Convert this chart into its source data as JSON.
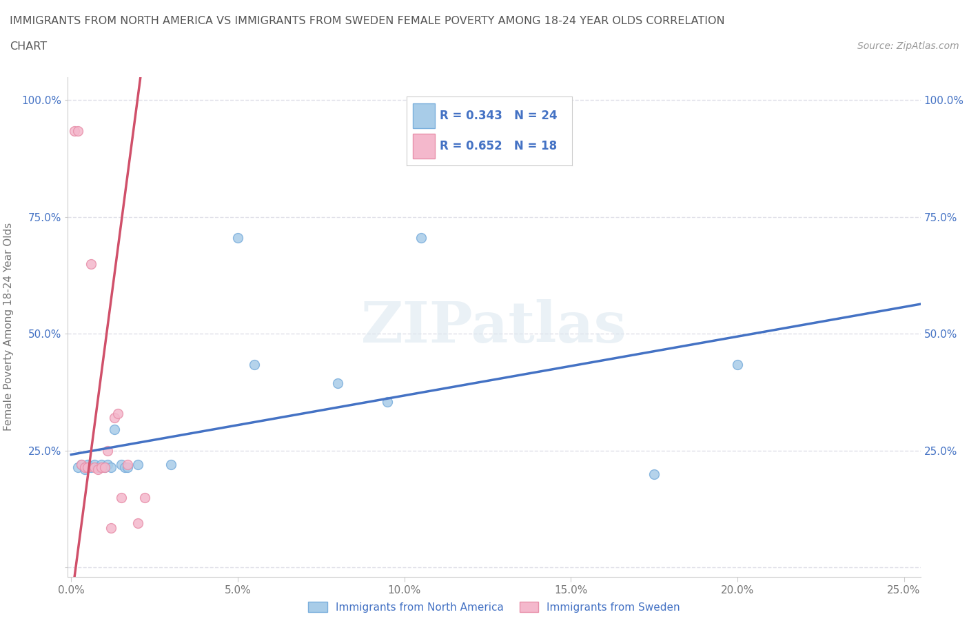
{
  "title_line1": "IMMIGRANTS FROM NORTH AMERICA VS IMMIGRANTS FROM SWEDEN FEMALE POVERTY AMONG 18-24 YEAR OLDS CORRELATION",
  "title_line2": "CHART",
  "source": "Source: ZipAtlas.com",
  "ylabel": "Female Poverty Among 18-24 Year Olds",
  "xlim": [
    -0.001,
    0.255
  ],
  "ylim": [
    -0.02,
    1.05
  ],
  "xticks": [
    0.0,
    0.05,
    0.1,
    0.15,
    0.2,
    0.25
  ],
  "yticks": [
    0.0,
    0.25,
    0.5,
    0.75,
    1.0
  ],
  "xtick_labels": [
    "0.0%",
    "5.0%",
    "10.0%",
    "15.0%",
    "20.0%",
    "25.0%"
  ],
  "ytick_labels_left": [
    "",
    "25.0%",
    "50.0%",
    "75.0%",
    "100.0%"
  ],
  "ytick_labels_right": [
    "",
    "25.0%",
    "50.0%",
    "75.0%",
    "100.0%"
  ],
  "blue_color": "#a8cce8",
  "pink_color": "#f4b8cc",
  "blue_edge": "#7aaedc",
  "pink_edge": "#e890aa",
  "trend_blue": "#4472c4",
  "trend_pink": "#d0506a",
  "R_blue": 0.343,
  "N_blue": 24,
  "R_pink": 0.652,
  "N_pink": 18,
  "blue_x": [
    0.002,
    0.003,
    0.004,
    0.005,
    0.006,
    0.007,
    0.008,
    0.009,
    0.01,
    0.011,
    0.012,
    0.013,
    0.015,
    0.016,
    0.017,
    0.02,
    0.03,
    0.05,
    0.055,
    0.08,
    0.095,
    0.105,
    0.175,
    0.2
  ],
  "blue_y": [
    0.215,
    0.22,
    0.21,
    0.22,
    0.215,
    0.22,
    0.215,
    0.22,
    0.215,
    0.22,
    0.215,
    0.295,
    0.22,
    0.215,
    0.215,
    0.22,
    0.22,
    0.705,
    0.435,
    0.395,
    0.355,
    0.705,
    0.2,
    0.435
  ],
  "pink_x": [
    0.001,
    0.002,
    0.003,
    0.004,
    0.005,
    0.006,
    0.007,
    0.008,
    0.009,
    0.01,
    0.011,
    0.012,
    0.013,
    0.014,
    0.015,
    0.017,
    0.02,
    0.022
  ],
  "pink_y": [
    0.935,
    0.935,
    0.22,
    0.215,
    0.215,
    0.65,
    0.215,
    0.21,
    0.215,
    0.215,
    0.25,
    0.085,
    0.32,
    0.33,
    0.15,
    0.22,
    0.095,
    0.15
  ],
  "watermark": "ZIPatlas",
  "background_color": "#ffffff",
  "grid_color": "#e0e0e8",
  "legend_text_color": "#4472c4",
  "axis_text_color": "#777777",
  "right_axis_color": "#4472c4"
}
